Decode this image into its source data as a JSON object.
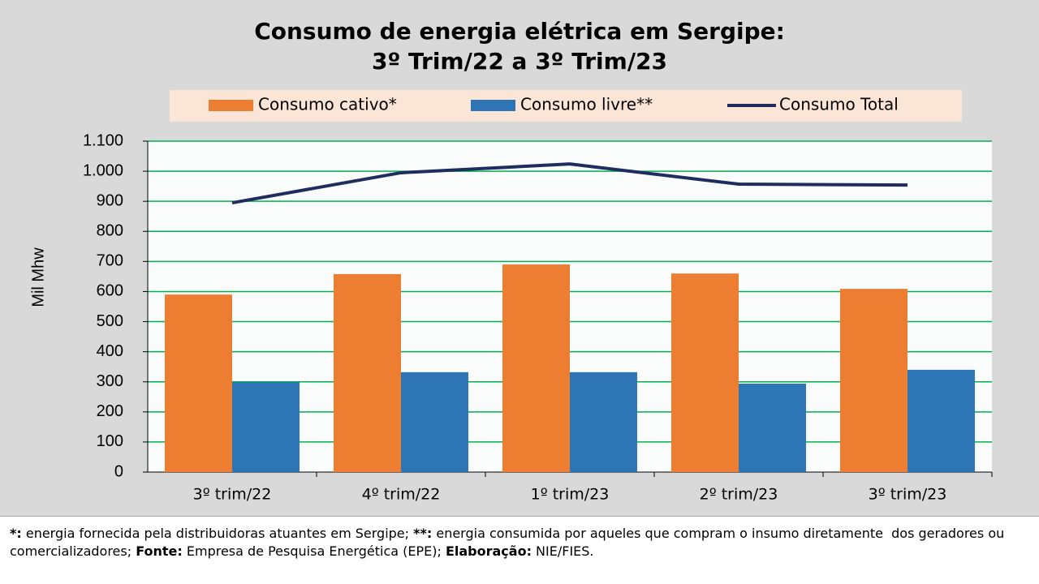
{
  "chart_data": {
    "type": "bar_line",
    "title": [
      "Consumo de energia elétrica em Sergipe:",
      "3º Trim/22 a 3º Trim/23"
    ],
    "y_label": "Mil Mhw",
    "categories": [
      "3º trim/22",
      "4º trim/22",
      "1º trim/23",
      "2º trim/23",
      "3º trim/23"
    ],
    "series": [
      {
        "name": "Consumo cativo*",
        "type": "bar",
        "color": "#ed7d31",
        "values": [
          590,
          658,
          690,
          660,
          609
        ]
      },
      {
        "name": "Consumo livre**",
        "type": "bar",
        "color": "#2e75b6",
        "values": [
          299,
          332,
          332,
          294,
          340
        ]
      },
      {
        "name": "Consumo Total",
        "type": "line",
        "color": "#1f2d5e",
        "values": [
          895,
          995,
          1024,
          957,
          954
        ]
      }
    ],
    "ylim": [
      0,
      1100
    ],
    "yticks": [
      0,
      100,
      200,
      300,
      400,
      500,
      600,
      700,
      800,
      900,
      {
        "value": 1000,
        "label": "1.000"
      },
      {
        "value": 1100,
        "label": "1.100"
      }
    ],
    "grid": true,
    "grid_color": "#00b050",
    "footnote": [
      {
        "text": "*:",
        "bold": true
      },
      {
        "text": " energia fornecida pela distribuidoras atuantes em Sergipe; ",
        "bold": false
      },
      {
        "text": "**:",
        "bold": true
      },
      {
        "text": " energia consumida por aqueles que compram o insumo diretamente  dos geradores ou comercializadores; ",
        "bold": false
      },
      {
        "text": "Fonte:",
        "bold": true
      },
      {
        "text": " Empresa de Pesquisa Energética (EPE); ",
        "bold": false
      },
      {
        "text": "Elaboração:",
        "bold": true
      },
      {
        "text": " NIE/FIES.",
        "bold": false
      }
    ]
  }
}
